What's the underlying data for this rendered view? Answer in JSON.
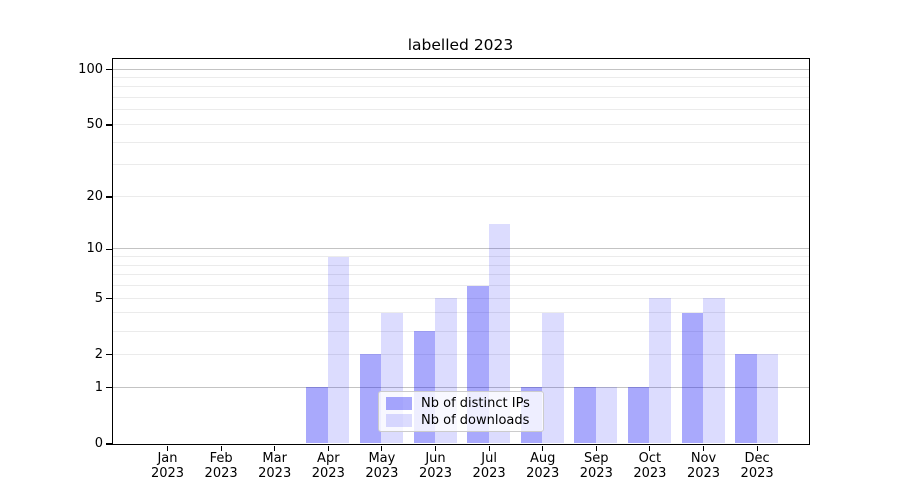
{
  "title": "labelled 2023",
  "chart_data": {
    "type": "bar",
    "title": "labelled 2023",
    "categories": [
      "Jan 2023",
      "Feb 2023",
      "Mar 2023",
      "Apr 2023",
      "May 2023",
      "Jun 2023",
      "Jul 2023",
      "Aug 2023",
      "Sep 2023",
      "Oct 2023",
      "Nov 2023",
      "Dec 2023"
    ],
    "series": [
      {
        "name": "Nb of distinct IPs",
        "color": "#0a0af5",
        "alpha": 0.35,
        "values": [
          null,
          null,
          null,
          1,
          2,
          3,
          6,
          1,
          1,
          1,
          4,
          2
        ]
      },
      {
        "name": "Nb of downloads",
        "color": "#0a0af5",
        "alpha": 0.14,
        "values": [
          null,
          null,
          null,
          9,
          4,
          5,
          14,
          4,
          1,
          5,
          5,
          2
        ]
      }
    ],
    "yscale": "log1p",
    "ylim": [
      0,
      114
    ],
    "yticks": [
      100,
      50,
      20,
      10,
      5,
      2,
      1,
      0
    ],
    "major_gridlines": [
      1,
      10,
      100
    ],
    "minor_gridlines": [
      2,
      3,
      4,
      5,
      6,
      7,
      8,
      9,
      20,
      30,
      40,
      50,
      60,
      70,
      80,
      90
    ],
    "grid": true,
    "legend_position": "lower center",
    "xlabel": "",
    "ylabel": ""
  },
  "colors": {
    "major_grid": "#c3c3c3",
    "minor_grid": "#ebebeb",
    "spine": "#000000",
    "text": "#000000",
    "legend_border": "#cccccc"
  }
}
